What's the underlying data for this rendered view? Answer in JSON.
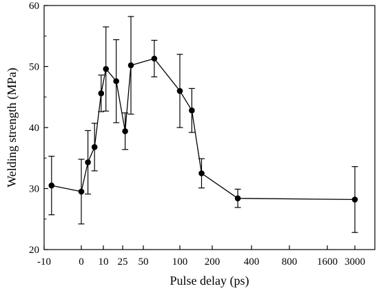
{
  "chart_data": {
    "type": "line",
    "title": "",
    "xlabel": "Pulse delay (ps)",
    "ylabel": "Welding strength (MPa)",
    "x_scale": "categorical-nonuniform",
    "xticks": [
      "-10",
      "0",
      "10",
      "25",
      "50",
      "100",
      "200",
      "400",
      "800",
      "1600",
      "3000"
    ],
    "ylim": [
      20,
      60
    ],
    "yticks": [
      "20",
      "30",
      "40",
      "50",
      "60"
    ],
    "grid": false,
    "legend": "none",
    "marker_color": "#000000",
    "series": [
      {
        "points": [
          {
            "x": -8,
            "y": 30.5,
            "err_low": 25.7,
            "err_high": 35.3
          },
          {
            "x": 0,
            "y": 29.5,
            "err_low": 24.2,
            "err_high": 34.8
          },
          {
            "x": 3,
            "y": 34.3,
            "err_low": 29.1,
            "err_high": 39.5
          },
          {
            "x": 6,
            "y": 36.8,
            "err_low": 32.9,
            "err_high": 40.7
          },
          {
            "x": 9,
            "y": 45.6,
            "err_low": 42.6,
            "err_high": 48.6
          },
          {
            "x": 12,
            "y": 49.6,
            "err_low": 42.7,
            "err_high": 56.5
          },
          {
            "x": 20,
            "y": 47.6,
            "err_low": 40.8,
            "err_high": 54.4
          },
          {
            "x": 28,
            "y": 39.4,
            "err_low": 36.4,
            "err_high": 42.4
          },
          {
            "x": 35,
            "y": 50.2,
            "err_low": 42.2,
            "err_high": 58.2
          },
          {
            "x": 65,
            "y": 51.3,
            "err_low": 48.3,
            "err_high": 54.3
          },
          {
            "x": 100,
            "y": 46.0,
            "err_low": 40.0,
            "err_high": 52.0
          },
          {
            "x": 137,
            "y": 42.8,
            "err_low": 39.2,
            "err_high": 46.4
          },
          {
            "x": 167,
            "y": 32.5,
            "err_low": 30.1,
            "err_high": 34.9
          },
          {
            "x": 330,
            "y": 28.4,
            "err_low": 26.9,
            "err_high": 29.9
          },
          {
            "x": 3000,
            "y": 28.2,
            "err_low": 22.8,
            "err_high": 33.6
          }
        ]
      }
    ]
  }
}
